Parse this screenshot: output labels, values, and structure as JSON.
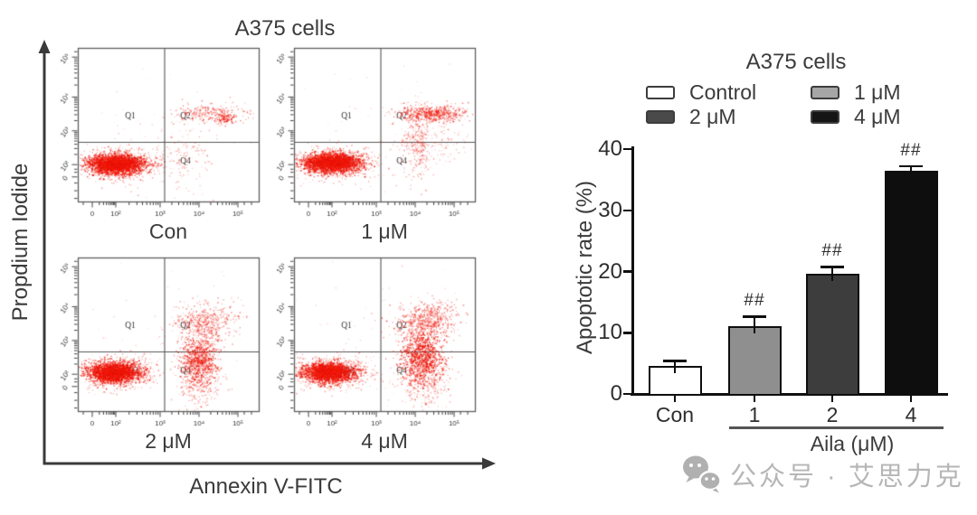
{
  "watermark": {
    "icon": "wechat-icon",
    "text": "公众号 · 艾思力克"
  },
  "chart_data": [
    {
      "type": "bar",
      "title": "A375 cells",
      "categories": [
        "Con",
        "1",
        "2",
        "4"
      ],
      "values": [
        4.6,
        11.1,
        19.6,
        36.4
      ],
      "errors": [
        1.0,
        1.7,
        1.3,
        1.0
      ],
      "annotations": [
        "",
        "##",
        "##",
        "##"
      ],
      "bar_colors": [
        "#ffffff",
        "#8f8f8f",
        "#3d3d3d",
        "#0e0e0e"
      ],
      "legend_items": [
        {
          "label": "Control",
          "color": "#ffffff"
        },
        {
          "label": "1 μM",
          "color": "#a6a6a6"
        },
        {
          "label": "2 μM",
          "color": "#4a4a4a"
        },
        {
          "label": "4 μM",
          "color": "#141414"
        }
      ],
      "xlabel": "Aila (μM)",
      "ylabel": "Apoptotic rate (%)",
      "ylim": [
        0,
        40
      ],
      "yticks": [
        0,
        10,
        20,
        30,
        40
      ],
      "legend_position": "top",
      "grid": "off"
    },
    {
      "type": "scatter",
      "title": "A375 cells",
      "xlabel": "Annexin V-FITC",
      "ylabel": "Propdium Iodide",
      "x_ticks": [
        "0",
        "10²",
        "10³",
        "10⁴",
        "10⁵"
      ],
      "y_ticks": [
        "10⁵",
        "10⁴",
        "10³",
        "10²",
        "0"
      ],
      "quadrant_labels": [
        "Q1",
        "Q2",
        "Q3",
        "Q4"
      ],
      "point_color": "#e3150b",
      "panels": [
        {
          "label": "Con",
          "seed": 7,
          "clusters": [
            [
              0.21,
              0.755,
              0.075,
              0.03,
              2600,
              0.9
            ],
            [
              0.22,
              0.755,
              0.115,
              0.05,
              700,
              0.45
            ],
            [
              0.72,
              0.425,
              0.105,
              0.03,
              260,
              0.55
            ],
            [
              0.815,
              0.455,
              0.028,
              0.018,
              90,
              0.75
            ],
            [
              0.6,
              0.7,
              0.075,
              0.11,
              140,
              0.4
            ],
            [
              0.48,
              0.58,
              0.22,
              0.22,
              55,
              0.22
            ]
          ]
        },
        {
          "label": "1 μM",
          "seed": 11,
          "clusters": [
            [
              0.21,
              0.745,
              0.075,
              0.03,
              2600,
              0.9
            ],
            [
              0.22,
              0.745,
              0.115,
              0.05,
              700,
              0.45
            ],
            [
              0.765,
              0.425,
              0.095,
              0.028,
              520,
              0.65
            ],
            [
              0.67,
              0.6,
              0.045,
              0.11,
              300,
              0.45
            ],
            [
              0.78,
              0.62,
              0.1,
              0.1,
              150,
              0.35
            ],
            [
              0.5,
              0.52,
              0.26,
              0.26,
              55,
              0.22
            ]
          ]
        },
        {
          "label": "2 μM",
          "seed": 23,
          "clusters": [
            [
              0.195,
              0.745,
              0.07,
              0.032,
              2300,
              0.9
            ],
            [
              0.21,
              0.745,
              0.11,
              0.05,
              600,
              0.45
            ],
            [
              0.7,
              0.415,
              0.085,
              0.06,
              480,
              0.5
            ],
            [
              0.665,
              0.655,
              0.048,
              0.085,
              800,
              0.75
            ],
            [
              0.67,
              0.8,
              0.06,
              0.09,
              260,
              0.45
            ],
            [
              0.5,
              0.52,
              0.26,
              0.26,
              65,
              0.22
            ]
          ]
        },
        {
          "label": "4 μM",
          "seed": 31,
          "clusters": [
            [
              0.19,
              0.745,
              0.07,
              0.032,
              2100,
              0.9
            ],
            [
              0.21,
              0.745,
              0.11,
              0.05,
              600,
              0.45
            ],
            [
              0.725,
              0.41,
              0.085,
              0.06,
              620,
              0.55
            ],
            [
              0.705,
              0.645,
              0.055,
              0.085,
              1000,
              0.8
            ],
            [
              0.72,
              0.8,
              0.07,
              0.09,
              300,
              0.45
            ],
            [
              0.52,
              0.52,
              0.26,
              0.26,
              75,
              0.22
            ]
          ]
        }
      ]
    }
  ]
}
